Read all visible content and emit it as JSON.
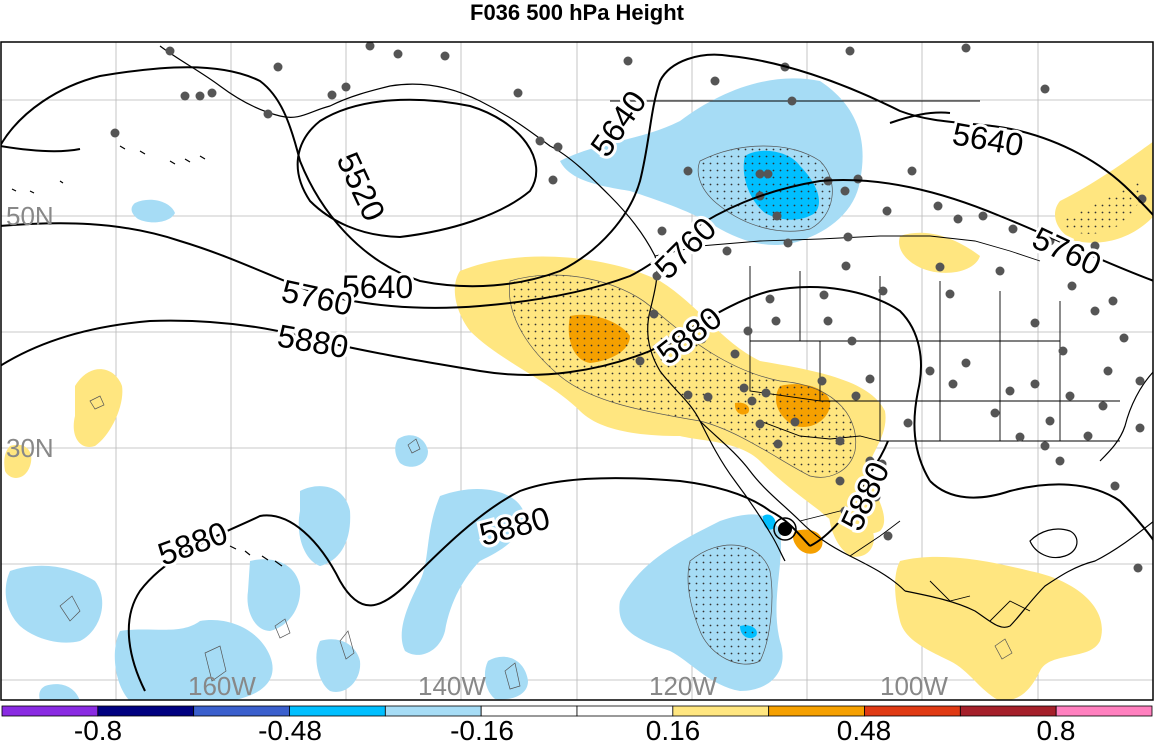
{
  "title": "F036 500 hPa Height",
  "axes": {
    "lat_labels": [
      "50N",
      "30N"
    ],
    "lon_labels": [
      "160W",
      "140W",
      "120W",
      "100W"
    ]
  },
  "contours": {
    "labels": [
      "5520",
      "5640",
      "5640",
      "5640",
      "5760",
      "5760",
      "5760",
      "5880",
      "5880",
      "5880",
      "5880",
      "5880"
    ]
  },
  "colorbar": {
    "colors": [
      "#8a2be2",
      "#000080",
      "#3a5fcd",
      "#00bfff",
      "#a6dcf5",
      "#ffffff",
      "#ffffff",
      "#ffe680",
      "#f5a000",
      "#e03a14",
      "#a5202a",
      "#ff80bf"
    ],
    "labels": [
      "-0.8",
      "-0.48",
      "-0.16",
      "0.16",
      "0.48",
      "0.8"
    ]
  },
  "colors": {
    "neg_light": "#a6dcf5",
    "neg_mid": "#00bfff",
    "pos_light": "#ffe680",
    "pos_mid": "#f5a000"
  }
}
